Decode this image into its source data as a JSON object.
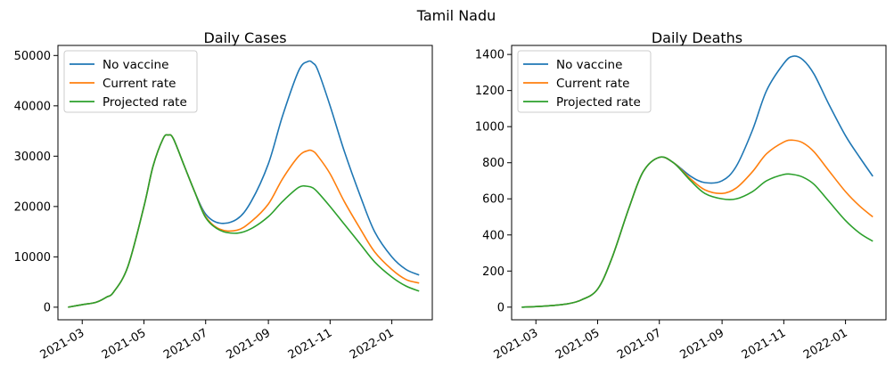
{
  "figure": {
    "suptitle": "Tamil Nadu"
  },
  "chart_data": [
    {
      "type": "line",
      "title": "Daily Cases",
      "xlabel": "",
      "ylabel": "",
      "x_type": "date",
      "xlim": [
        "2021-02-05",
        "2022-02-10"
      ],
      "ylim": [
        -2500,
        52000
      ],
      "x_ticks": [
        "2021-03-01",
        "2021-05-01",
        "2021-07-01",
        "2021-09-01",
        "2021-11-01",
        "2022-01-01"
      ],
      "x_tick_labels": [
        "2021-03",
        "2021-05",
        "2021-07",
        "2021-09",
        "2021-11",
        "2022-01"
      ],
      "y_ticks": [
        0,
        10000,
        20000,
        30000,
        40000,
        50000
      ],
      "y_tick_labels": [
        "0",
        "10000",
        "20000",
        "30000",
        "40000",
        "50000"
      ],
      "grid": false,
      "legend_position": "top-left",
      "x": [
        "2021-02-15",
        "2021-03-01",
        "2021-03-15",
        "2021-03-25",
        "2021-04-01",
        "2021-04-15",
        "2021-05-01",
        "2021-05-10",
        "2021-05-20",
        "2021-05-25",
        "2021-05-30",
        "2021-06-10",
        "2021-06-20",
        "2021-07-01",
        "2021-07-15",
        "2021-08-01",
        "2021-08-15",
        "2021-09-01",
        "2021-09-15",
        "2021-10-01",
        "2021-10-10",
        "2021-10-15",
        "2021-10-20",
        "2021-11-01",
        "2021-11-15",
        "2021-12-01",
        "2021-12-15",
        "2022-01-01",
        "2022-01-15",
        "2022-01-28"
      ],
      "series": [
        {
          "name": "No vaccine",
          "color": "#1f77b4",
          "values": [
            0,
            500,
            1000,
            2000,
            3000,
            8000,
            20000,
            28000,
            33500,
            34200,
            33500,
            28000,
            23000,
            18500,
            16700,
            17500,
            21000,
            28500,
            38000,
            47000,
            48800,
            48500,
            47000,
            40000,
            31000,
            22000,
            15000,
            10000,
            7500,
            6400
          ]
        },
        {
          "name": "Current rate",
          "color": "#ff7f0e",
          "values": [
            0,
            500,
            1000,
            2000,
            3000,
            8000,
            20000,
            28000,
            33500,
            34200,
            33500,
            28000,
            23000,
            18000,
            15500,
            15300,
            17000,
            20500,
            25500,
            30000,
            31100,
            31000,
            30000,
            26500,
            21000,
            15500,
            11000,
            7500,
            5500,
            4800
          ]
        },
        {
          "name": "Projected rate",
          "color": "#2ca02c",
          "values": [
            0,
            500,
            1000,
            2000,
            3000,
            8000,
            20000,
            28000,
            33500,
            34200,
            33500,
            28000,
            23000,
            17800,
            15300,
            14700,
            15600,
            18000,
            21000,
            23800,
            24000,
            23700,
            22800,
            20000,
            16500,
            12500,
            9000,
            6000,
            4200,
            3200
          ]
        }
      ]
    },
    {
      "type": "line",
      "title": "Daily Deaths",
      "xlabel": "",
      "ylabel": "",
      "x_type": "date",
      "xlim": [
        "2021-02-05",
        "2022-02-10"
      ],
      "ylim": [
        -70,
        1450
      ],
      "x_ticks": [
        "2021-03-01",
        "2021-05-01",
        "2021-07-01",
        "2021-09-01",
        "2021-11-01",
        "2022-01-01"
      ],
      "x_tick_labels": [
        "2021-03",
        "2021-05",
        "2021-07",
        "2021-09",
        "2021-11",
        "2022-01"
      ],
      "y_ticks": [
        0,
        200,
        400,
        600,
        800,
        1000,
        1200,
        1400
      ],
      "y_tick_labels": [
        "0",
        "200",
        "400",
        "600",
        "800",
        "1000",
        "1200",
        "1400"
      ],
      "grid": false,
      "legend_position": "top-left",
      "x": [
        "2021-02-15",
        "2021-03-01",
        "2021-03-15",
        "2021-04-01",
        "2021-04-15",
        "2021-05-01",
        "2021-05-15",
        "2021-06-01",
        "2021-06-15",
        "2021-07-01",
        "2021-07-15",
        "2021-08-01",
        "2021-08-15",
        "2021-09-01",
        "2021-09-15",
        "2021-10-01",
        "2021-10-15",
        "2021-11-01",
        "2021-11-10",
        "2021-11-20",
        "2021-12-01",
        "2021-12-15",
        "2022-01-01",
        "2022-01-15",
        "2022-01-28"
      ],
      "series": [
        {
          "name": "No vaccine",
          "color": "#1f77b4",
          "values": [
            0,
            3,
            8,
            18,
            40,
            100,
            270,
            550,
            750,
            830,
            800,
            725,
            690,
            700,
            780,
            980,
            1200,
            1350,
            1390,
            1370,
            1290,
            1130,
            950,
            830,
            725
          ]
        },
        {
          "name": "Current rate",
          "color": "#ff7f0e",
          "values": [
            0,
            3,
            8,
            18,
            40,
            100,
            270,
            550,
            750,
            830,
            800,
            710,
            650,
            630,
            660,
            750,
            850,
            915,
            925,
            910,
            860,
            760,
            640,
            560,
            500
          ]
        },
        {
          "name": "Projected rate",
          "color": "#2ca02c",
          "values": [
            0,
            3,
            8,
            18,
            40,
            100,
            270,
            550,
            750,
            830,
            800,
            700,
            630,
            600,
            600,
            640,
            700,
            735,
            735,
            720,
            680,
            590,
            480,
            410,
            365
          ]
        }
      ]
    }
  ]
}
